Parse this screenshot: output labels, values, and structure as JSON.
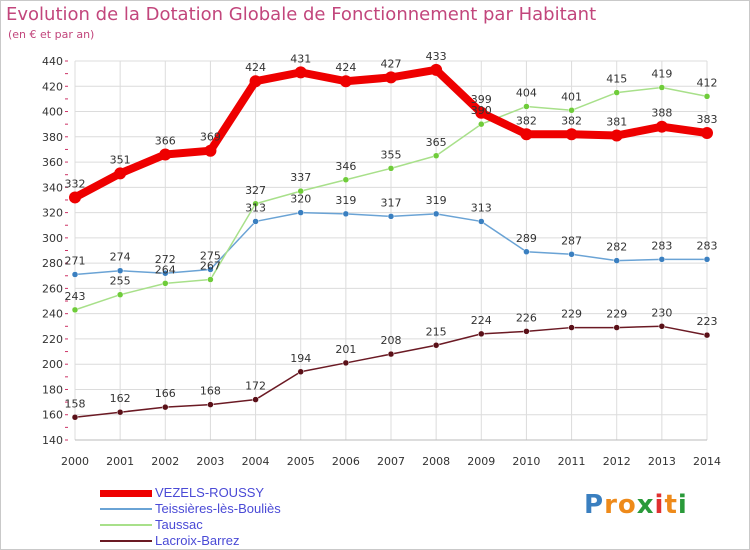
{
  "header": {
    "title": "Evolution de la Dotation Globale de Fonctionnement par Habitant",
    "subtitle": "(en € et par an)"
  },
  "logo": {
    "text": "Proxiti"
  },
  "colors": {
    "title": "#c2467c",
    "grid": "#dcdcdc",
    "axis_tick": "#cc3366",
    "label_text": "#333333",
    "legend_text": "#4a4ad6"
  },
  "chart_data": {
    "type": "line",
    "xlabel": "",
    "ylabel": "",
    "x": [
      2000,
      2001,
      2002,
      2003,
      2004,
      2005,
      2006,
      2007,
      2008,
      2009,
      2010,
      2011,
      2012,
      2013,
      2014
    ],
    "ylim": [
      140,
      440
    ],
    "yticks": [
      140,
      160,
      180,
      200,
      220,
      240,
      260,
      280,
      300,
      320,
      340,
      360,
      380,
      400,
      420,
      440
    ],
    "grid": true,
    "legend_position": "bottom-left",
    "series": [
      {
        "name": "Lacroix-Barrez",
        "color": "#6b1a24",
        "marker": "#5a1018",
        "values": [
          158,
          162,
          166,
          168,
          172,
          194,
          201,
          208,
          215,
          224,
          226,
          229,
          229,
          230,
          223
        ]
      },
      {
        "name": "Teissières-lès-Bouliès",
        "color": "#6aa3d5",
        "marker": "#3a7fc0",
        "values": [
          271,
          274,
          272,
          275,
          313,
          320,
          319,
          317,
          319,
          313,
          289,
          287,
          282,
          283,
          283
        ]
      },
      {
        "name": "Taussac",
        "color": "#a8e08a",
        "marker": "#6fcc3a",
        "values": [
          243,
          255,
          264,
          267,
          327,
          337,
          346,
          355,
          365,
          390,
          404,
          401,
          415,
          419,
          412
        ]
      },
      {
        "name": "VEZELS-ROUSSY",
        "color": "#ee0000",
        "marker": "#ee0000",
        "values": [
          332,
          351,
          366,
          369,
          424,
          431,
          424,
          427,
          433,
          399,
          382,
          382,
          381,
          388,
          383
        ]
      }
    ],
    "data_labels": [
      {
        "series": "Lacroix-Barrez",
        "labels": [
          "158",
          "162",
          "166",
          "168",
          "172",
          "194",
          "201",
          "208",
          "215",
          "224",
          "226",
          "229",
          "229",
          "230",
          "223"
        ]
      },
      {
        "series": "Teissières-lès-Bouliès",
        "labels": [
          "271",
          "274",
          "272",
          "275",
          "313",
          "320",
          "319",
          "317",
          "319",
          "313",
          "289",
          "287",
          "282",
          "283",
          "283"
        ]
      },
      {
        "series": "Taussac",
        "labels": [
          "243",
          "255",
          "264",
          "267",
          "327",
          "337",
          "346",
          "355",
          "365",
          "390",
          "404",
          "401",
          "415",
          "419",
          "412"
        ]
      },
      {
        "series": "VEZELS-ROUSSY",
        "labels": [
          "332",
          "351",
          "366",
          "369",
          "424",
          "431",
          "424",
          "427",
          "433",
          "399",
          "382",
          "382",
          "381",
          "388",
          "383"
        ]
      }
    ]
  },
  "legend": [
    {
      "label": "VEZELS-ROUSSY",
      "color": "#ee0000",
      "weight": "thick"
    },
    {
      "label": "Teissières-lès-Bouliès",
      "color": "#6aa3d5",
      "weight": "thin"
    },
    {
      "label": "Taussac",
      "color": "#a8e08a",
      "weight": "thin"
    },
    {
      "label": "Lacroix-Barrez",
      "color": "#6b1a24",
      "weight": "thin"
    }
  ]
}
